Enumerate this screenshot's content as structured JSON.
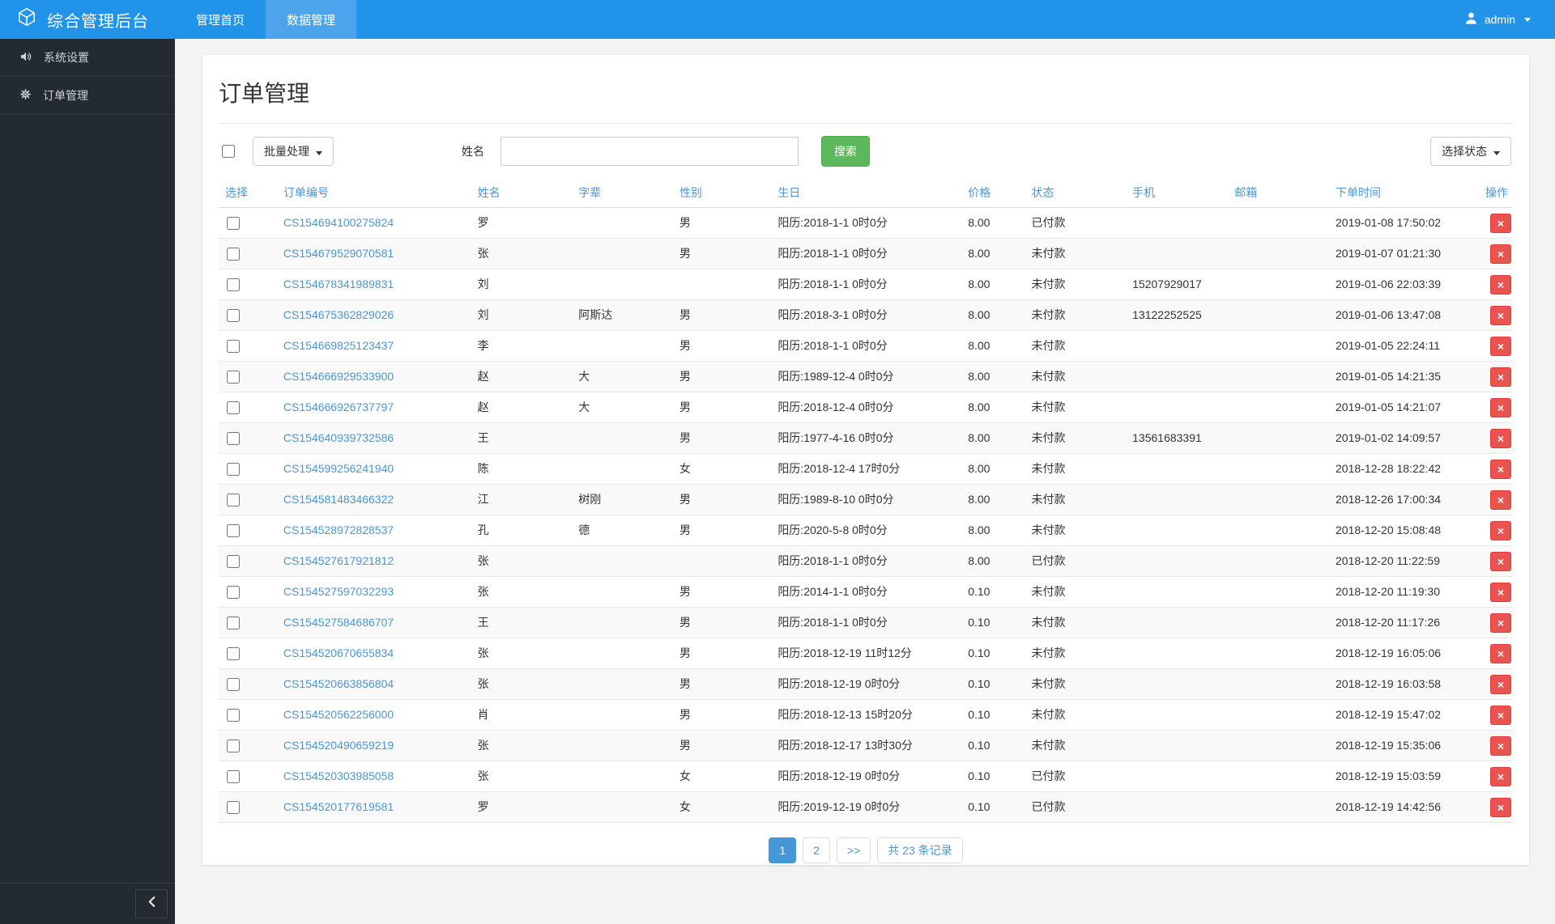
{
  "navbar": {
    "brand": "综合管理后台",
    "items": [
      {
        "label": "管理首页",
        "active": false
      },
      {
        "label": "数据管理",
        "active": true
      }
    ],
    "user": "admin"
  },
  "sidebar": {
    "items": [
      {
        "label": "系统设置",
        "icon": "speaker-icon"
      },
      {
        "label": "订单管理",
        "icon": "gear-icon"
      }
    ]
  },
  "page": {
    "title": "订单管理",
    "toolbar": {
      "batch_label": "批量处理",
      "name_label": "姓名",
      "name_value": "",
      "search_label": "搜索",
      "status_label": "选择状态"
    }
  },
  "table": {
    "headers": [
      "选择",
      "订单编号",
      "姓名",
      "字辈",
      "性别",
      "生日",
      "价格",
      "状态",
      "手机",
      "邮箱",
      "下单时间",
      "操作"
    ],
    "rows": [
      {
        "order": "CS154694100275824",
        "name": "罗",
        "zi": "",
        "gender": "男",
        "birthday": "阳历:2018-1-1 0时0分",
        "price": "8.00",
        "status": "已付款",
        "phone": "",
        "email": "",
        "time": "2019-01-08 17:50:02"
      },
      {
        "order": "CS154679529070581",
        "name": "张",
        "zi": "",
        "gender": "男",
        "birthday": "阳历:2018-1-1 0时0分",
        "price": "8.00",
        "status": "未付款",
        "phone": "",
        "email": "",
        "time": "2019-01-07 01:21:30"
      },
      {
        "order": "CS154678341989831",
        "name": "刘",
        "zi": "",
        "gender": "",
        "birthday": "阳历:2018-1-1 0时0分",
        "price": "8.00",
        "status": "未付款",
        "phone": "15207929017",
        "email": "",
        "time": "2019-01-06 22:03:39"
      },
      {
        "order": "CS154675362829026",
        "name": "刘",
        "zi": "阿斯达",
        "gender": "男",
        "birthday": "阳历:2018-3-1 0时0分",
        "price": "8.00",
        "status": "未付款",
        "phone": "13122252525",
        "email": "",
        "time": "2019-01-06 13:47:08"
      },
      {
        "order": "CS154669825123437",
        "name": "李",
        "zi": "",
        "gender": "男",
        "birthday": "阳历:2018-1-1 0时0分",
        "price": "8.00",
        "status": "未付款",
        "phone": "",
        "email": "",
        "time": "2019-01-05 22:24:11"
      },
      {
        "order": "CS154666929533900",
        "name": "赵",
        "zi": "大",
        "gender": "男",
        "birthday": "阳历:1989-12-4 0时0分",
        "price": "8.00",
        "status": "未付款",
        "phone": "",
        "email": "",
        "time": "2019-01-05 14:21:35"
      },
      {
        "order": "CS154666926737797",
        "name": "赵",
        "zi": "大",
        "gender": "男",
        "birthday": "阳历:2018-12-4 0时0分",
        "price": "8.00",
        "status": "未付款",
        "phone": "",
        "email": "",
        "time": "2019-01-05 14:21:07"
      },
      {
        "order": "CS154640939732586",
        "name": "王",
        "zi": "",
        "gender": "男",
        "birthday": "阳历:1977-4-16 0时0分",
        "price": "8.00",
        "status": "未付款",
        "phone": "13561683391",
        "email": "",
        "time": "2019-01-02 14:09:57"
      },
      {
        "order": "CS154599256241940",
        "name": "陈",
        "zi": "",
        "gender": "女",
        "birthday": "阳历:2018-12-4 17时0分",
        "price": "8.00",
        "status": "未付款",
        "phone": "",
        "email": "",
        "time": "2018-12-28 18:22:42"
      },
      {
        "order": "CS154581483466322",
        "name": "江",
        "zi": "树刚",
        "gender": "男",
        "birthday": "阳历:1989-8-10 0时0分",
        "price": "8.00",
        "status": "未付款",
        "phone": "",
        "email": "",
        "time": "2018-12-26 17:00:34"
      },
      {
        "order": "CS154528972828537",
        "name": "孔",
        "zi": "德",
        "gender": "男",
        "birthday": "阳历:2020-5-8 0时0分",
        "price": "8.00",
        "status": "未付款",
        "phone": "",
        "email": "",
        "time": "2018-12-20 15:08:48"
      },
      {
        "order": "CS154527617921812",
        "name": "张",
        "zi": "",
        "gender": "",
        "birthday": "阳历:2018-1-1 0时0分",
        "price": "8.00",
        "status": "已付款",
        "phone": "",
        "email": "",
        "time": "2018-12-20 11:22:59"
      },
      {
        "order": "CS154527597032293",
        "name": "张",
        "zi": "",
        "gender": "男",
        "birthday": "阳历:2014-1-1 0时0分",
        "price": "0.10",
        "status": "未付款",
        "phone": "",
        "email": "",
        "time": "2018-12-20 11:19:30"
      },
      {
        "order": "CS154527584686707",
        "name": "王",
        "zi": "",
        "gender": "男",
        "birthday": "阳历:2018-1-1 0时0分",
        "price": "0.10",
        "status": "未付款",
        "phone": "",
        "email": "",
        "time": "2018-12-20 11:17:26"
      },
      {
        "order": "CS154520670655834",
        "name": "张",
        "zi": "",
        "gender": "男",
        "birthday": "阳历:2018-12-19 11时12分",
        "price": "0.10",
        "status": "未付款",
        "phone": "",
        "email": "",
        "time": "2018-12-19 16:05:06"
      },
      {
        "order": "CS154520663856804",
        "name": "张",
        "zi": "",
        "gender": "男",
        "birthday": "阳历:2018-12-19 0时0分",
        "price": "0.10",
        "status": "未付款",
        "phone": "",
        "email": "",
        "time": "2018-12-19 16:03:58"
      },
      {
        "order": "CS154520562256000",
        "name": "肖",
        "zi": "",
        "gender": "男",
        "birthday": "阳历:2018-12-13 15时20分",
        "price": "0.10",
        "status": "未付款",
        "phone": "",
        "email": "",
        "time": "2018-12-19 15:47:02"
      },
      {
        "order": "CS154520490659219",
        "name": "张",
        "zi": "",
        "gender": "男",
        "birthday": "阳历:2018-12-17 13时30分",
        "price": "0.10",
        "status": "未付款",
        "phone": "",
        "email": "",
        "time": "2018-12-19 15:35:06"
      },
      {
        "order": "CS154520303985058",
        "name": "张",
        "zi": "",
        "gender": "女",
        "birthday": "阳历:2018-12-19 0时0分",
        "price": "0.10",
        "status": "已付款",
        "phone": "",
        "email": "",
        "time": "2018-12-19 15:03:59"
      },
      {
        "order": "CS154520177619581",
        "name": "罗",
        "zi": "",
        "gender": "女",
        "birthday": "阳历:2019-12-19 0时0分",
        "price": "0.10",
        "status": "已付款",
        "phone": "",
        "email": "",
        "time": "2018-12-19 14:42:56"
      }
    ]
  },
  "pagination": {
    "pages": [
      "1",
      "2"
    ],
    "active": "1",
    "next_label": ">>",
    "total_label": "共 23 条记录"
  },
  "icons": {
    "delete_x": "×"
  },
  "colors": {
    "navbar_blue": "#2193e8",
    "active_tab_blue": "#4ba4ec",
    "sidebar_dark": "#242a31",
    "link_blue": "#4a97d8",
    "search_green": "#5cb85c",
    "delete_red": "#e95450"
  }
}
